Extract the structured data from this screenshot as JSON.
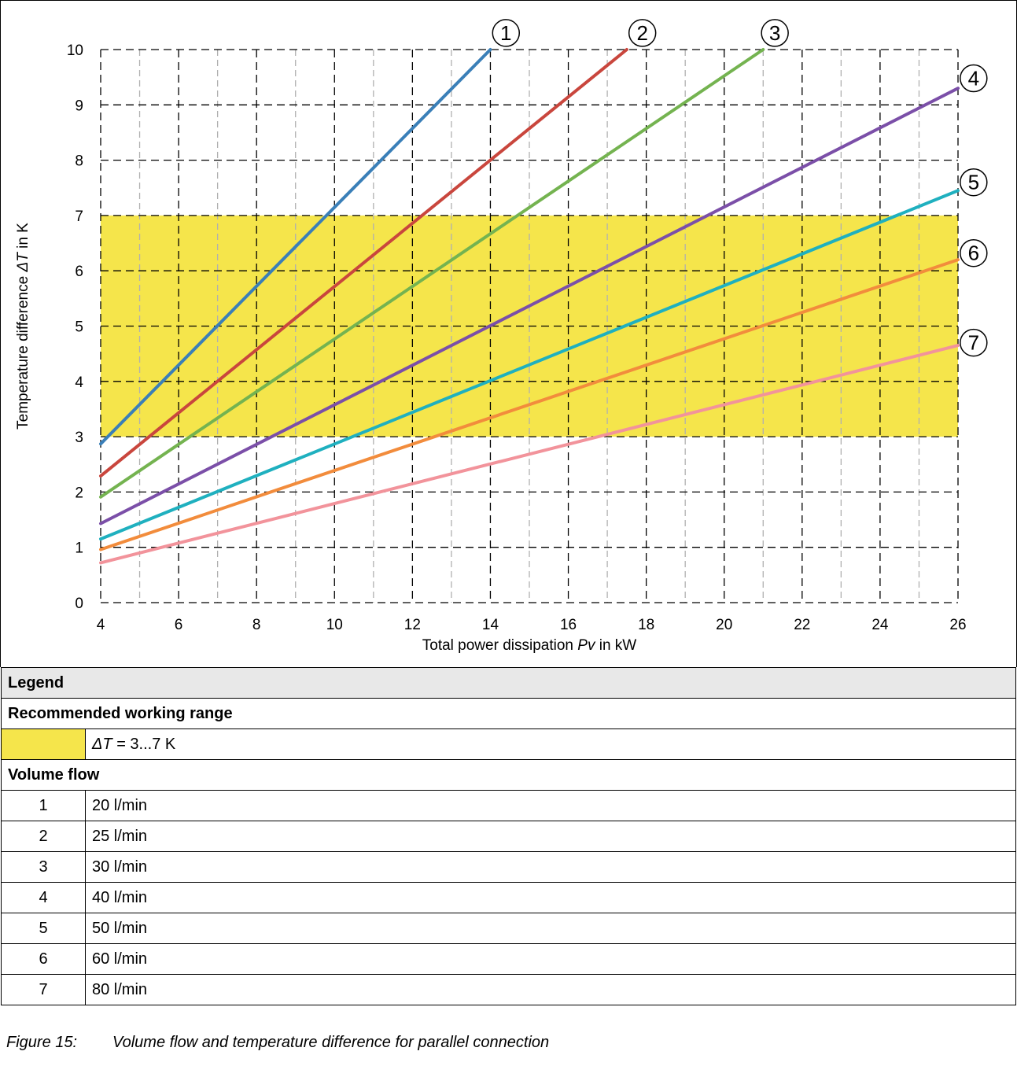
{
  "chart_data": {
    "type": "line",
    "xlabel_parts": [
      "Total power dissipation ",
      "Pv",
      " in kW"
    ],
    "ylabel_parts": [
      "Temperature difference ",
      "ΔT",
      " in K"
    ],
    "xlim": [
      4,
      26
    ],
    "ylim": [
      0,
      10
    ],
    "x_ticks": [
      4,
      6,
      8,
      10,
      12,
      14,
      16,
      18,
      20,
      22,
      24,
      26
    ],
    "y_ticks": [
      0,
      1,
      2,
      3,
      4,
      5,
      6,
      7,
      8,
      9,
      10
    ],
    "grid": true,
    "band": {
      "y_from": 3,
      "y_to": 7,
      "color": "#f5e54b"
    },
    "series": [
      {
        "name": "1",
        "color": "#3a7fb8",
        "points": [
          [
            4,
            2.87
          ],
          [
            14,
            10.0
          ]
        ]
      },
      {
        "name": "2",
        "color": "#c9463d",
        "points": [
          [
            4,
            2.29
          ],
          [
            17.5,
            10.0
          ]
        ]
      },
      {
        "name": "3",
        "color": "#74b350",
        "points": [
          [
            4,
            1.91
          ],
          [
            21,
            10.0
          ]
        ]
      },
      {
        "name": "4",
        "color": "#7b4fa8",
        "points": [
          [
            4,
            1.43
          ],
          [
            26,
            9.3
          ]
        ]
      },
      {
        "name": "5",
        "color": "#1fb0bf",
        "points": [
          [
            4,
            1.15
          ],
          [
            26,
            7.45
          ]
        ]
      },
      {
        "name": "6",
        "color": "#f28c3c",
        "points": [
          [
            4,
            0.96
          ],
          [
            26,
            6.2
          ]
        ]
      },
      {
        "name": "7",
        "color": "#f2939b",
        "points": [
          [
            4,
            0.72
          ],
          [
            26,
            4.65
          ]
        ]
      }
    ],
    "markers": [
      {
        "label": "1",
        "x": 14.4,
        "y": 10.3
      },
      {
        "label": "2",
        "x": 17.9,
        "y": 10.3
      },
      {
        "label": "3",
        "x": 21.3,
        "y": 10.3
      },
      {
        "label": "4",
        "x": 26.4,
        "y": 9.48
      },
      {
        "label": "5",
        "x": 26.4,
        "y": 7.6
      },
      {
        "label": "6",
        "x": 26.4,
        "y": 6.32
      },
      {
        "label": "7",
        "x": 26.4,
        "y": 4.7
      }
    ]
  },
  "legend": {
    "title": "Legend",
    "range_heading": "Recommended working range",
    "range_symbol": "ΔT",
    "range_text": " = 3...7 K",
    "range_swatch_color": "#f5e54b",
    "flow_heading": "Volume flow",
    "flows": [
      {
        "num": "1",
        "text": "20 l/min"
      },
      {
        "num": "2",
        "text": "25 l/min"
      },
      {
        "num": "3",
        "text": "30 l/min"
      },
      {
        "num": "4",
        "text": "40 l/min"
      },
      {
        "num": "5",
        "text": "50 l/min"
      },
      {
        "num": "6",
        "text": "60 l/min"
      },
      {
        "num": "7",
        "text": "80 l/min"
      }
    ]
  },
  "caption": {
    "label": "Figure 15:",
    "text": "Volume flow and temperature difference for parallel connection"
  }
}
